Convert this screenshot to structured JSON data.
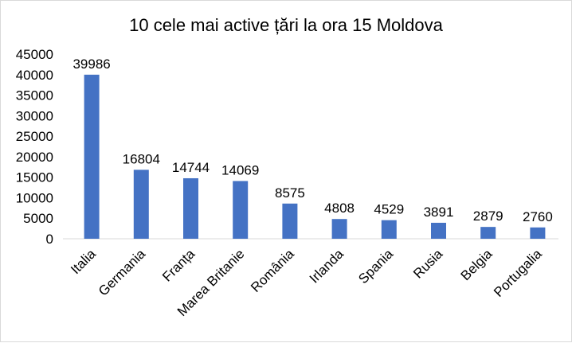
{
  "chart_data": {
    "type": "bar",
    "title": "10 cele mai active țări la ora 15 Moldova",
    "categories": [
      "Italia",
      "Germania",
      "Franța",
      "Marea Britanie",
      "România",
      "Irlanda",
      "Spania",
      "Rusia",
      "Belgia",
      "Portugalia"
    ],
    "values": [
      39986,
      16804,
      14744,
      14069,
      8575,
      4808,
      4529,
      3891,
      2879,
      2760
    ],
    "data_labels": [
      "39986",
      "16804",
      "14744",
      "14069",
      "8575",
      "4808",
      "4529",
      "3891",
      "2879",
      "2760"
    ],
    "y_ticks": [
      "0",
      "5000",
      "10000",
      "15000",
      "20000",
      "25000",
      "30000",
      "35000",
      "40000",
      "45000"
    ],
    "ylim": [
      0,
      45000
    ],
    "xlabel": "",
    "ylabel": "",
    "grid": false,
    "legend": "none",
    "bar_color": "#4472C4"
  }
}
